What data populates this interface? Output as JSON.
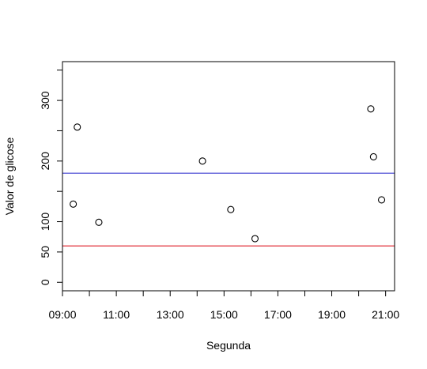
{
  "chart_data": {
    "type": "scatter",
    "title": "",
    "xlabel": "Segunda",
    "ylabel": "Valor de glicose",
    "x_unit": "hours",
    "xlim": [
      9.0,
      21.333
    ],
    "ylim": [
      -14,
      364
    ],
    "x_ticks": [
      {
        "value": 9,
        "label": "09:00"
      },
      {
        "value": 10,
        "label": ""
      },
      {
        "value": 11,
        "label": "11:00"
      },
      {
        "value": 12,
        "label": ""
      },
      {
        "value": 13,
        "label": "13:00"
      },
      {
        "value": 14,
        "label": ""
      },
      {
        "value": 15,
        "label": "15:00"
      },
      {
        "value": 16,
        "label": ""
      },
      {
        "value": 17,
        "label": "17:00"
      },
      {
        "value": 18,
        "label": ""
      },
      {
        "value": 19,
        "label": "19:00"
      },
      {
        "value": 20,
        "label": ""
      },
      {
        "value": 21,
        "label": "21:00"
      }
    ],
    "y_ticks": [
      {
        "value": 0,
        "label": "0"
      },
      {
        "value": 50,
        "label": "50"
      },
      {
        "value": 100,
        "label": "100"
      },
      {
        "value": 150,
        "label": ""
      },
      {
        "value": 200,
        "label": "200"
      },
      {
        "value": 250,
        "label": ""
      },
      {
        "value": 300,
        "label": "300"
      },
      {
        "value": 350,
        "label": ""
      }
    ],
    "points": [
      {
        "x": 9.4,
        "y": 129
      },
      {
        "x": 9.55,
        "y": 256
      },
      {
        "x": 10.35,
        "y": 99
      },
      {
        "x": 14.2,
        "y": 200
      },
      {
        "x": 15.25,
        "y": 120
      },
      {
        "x": 16.15,
        "y": 72
      },
      {
        "x": 20.45,
        "y": 286
      },
      {
        "x": 20.55,
        "y": 207
      },
      {
        "x": 20.85,
        "y": 136
      }
    ],
    "hlines": [
      {
        "y": 180,
        "color": "#3b3bd1"
      },
      {
        "y": 60,
        "color": "#e0303a"
      }
    ],
    "marker_color": "#000000",
    "grid": false,
    "legend": "none"
  }
}
